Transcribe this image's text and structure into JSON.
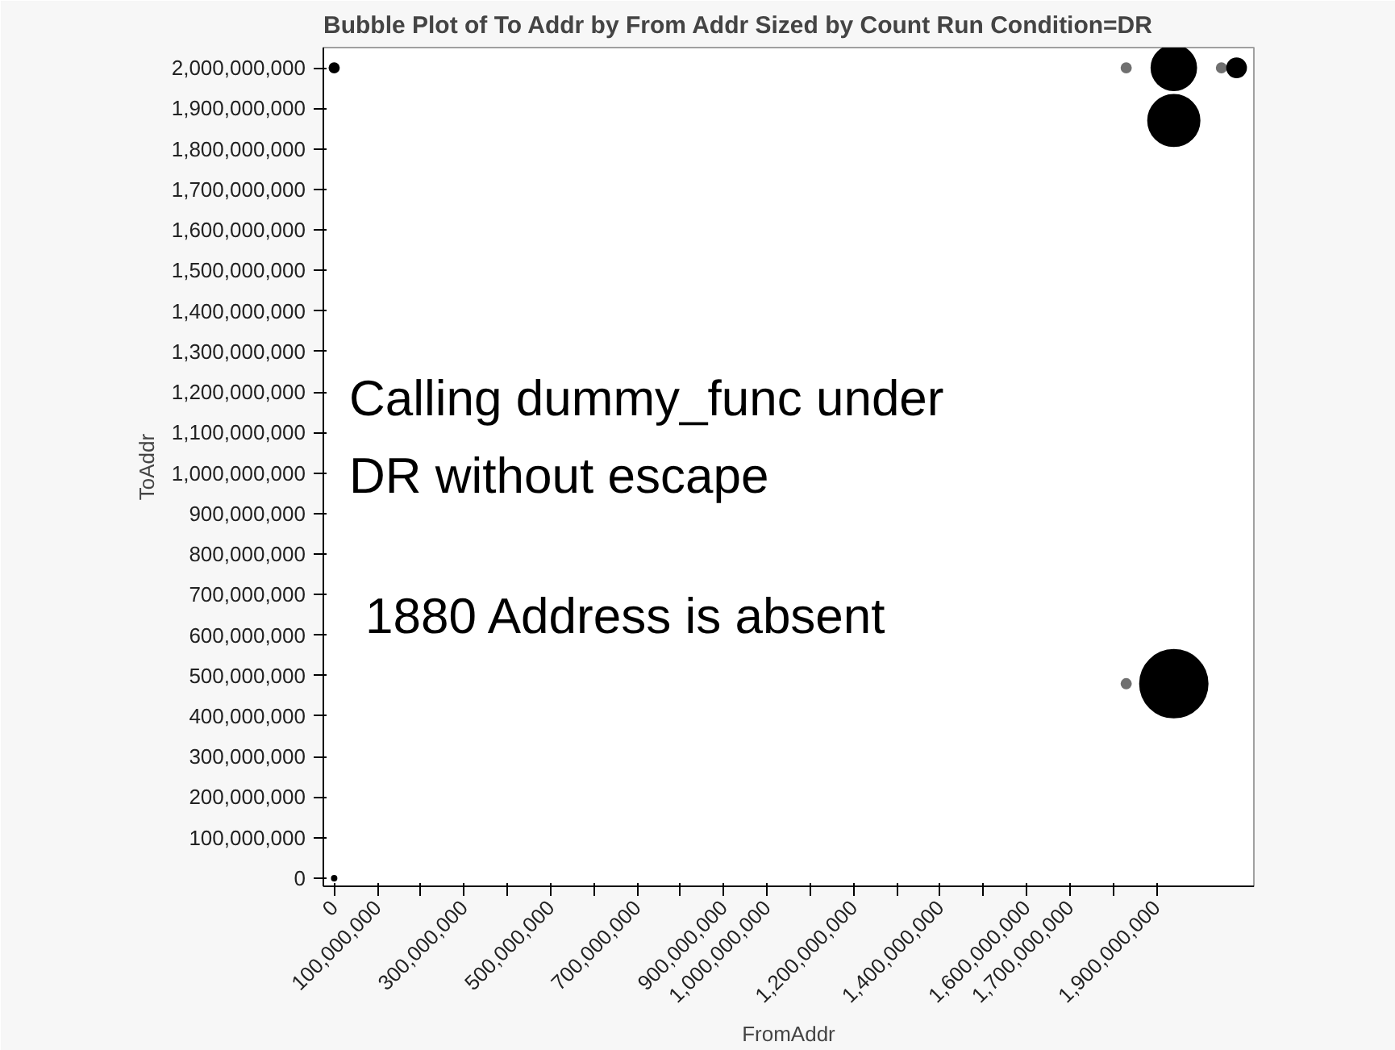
{
  "chart_data": {
    "type": "bubble",
    "title": "Bubble Plot of To Addr by From Addr Sized by Count Run Condition=DR",
    "xlabel": "FromAddr",
    "ylabel": "ToAddr",
    "x": [
      0,
      0,
      1830000000,
      1940000000,
      1940000000,
      2050000000,
      2085000000,
      1830000000,
      1940000000
    ],
    "values": [
      2000000000,
      0,
      2000000000,
      2000000000,
      1870000000,
      2000000000,
      2000000000,
      480000000,
      480000000
    ],
    "sizes": [
      0.02,
      0.005,
      0.02,
      0.44,
      0.58,
      0.02,
      0.08,
      0.02,
      1
    ],
    "colors": [
      "#000000",
      "#000000",
      "#707070",
      "#000000",
      "#000000",
      "#707070",
      "#000000",
      "#707070",
      "#000000"
    ],
    "xlim": [
      -25000000,
      2125000000
    ],
    "ylim": [
      -20000000,
      2050000000
    ],
    "xticks": [
      {
        "value": 0,
        "label": "0"
      },
      {
        "value": 100000000,
        "label": "100,000,000"
      },
      {
        "value": 200000000,
        "label": null
      },
      {
        "value": 300000000,
        "label": "300,000,000"
      },
      {
        "value": 400000000,
        "label": null
      },
      {
        "value": 500000000,
        "label": "500,000,000"
      },
      {
        "value": 600000000,
        "label": null
      },
      {
        "value": 700000000,
        "label": "700,000,000"
      },
      {
        "value": 800000000,
        "label": null
      },
      {
        "value": 900000000,
        "label": "900,000,000"
      },
      {
        "value": 1000000000,
        "label": "1,000,000,000"
      },
      {
        "value": 1100000000,
        "label": null
      },
      {
        "value": 1200000000,
        "label": "1,200,000,000"
      },
      {
        "value": 1300000000,
        "label": null
      },
      {
        "value": 1400000000,
        "label": "1,400,000,000"
      },
      {
        "value": 1500000000,
        "label": null
      },
      {
        "value": 1600000000,
        "label": "1,600,000,000"
      },
      {
        "value": 1700000000,
        "label": "1,700,000,000"
      },
      {
        "value": 1800000000,
        "label": null
      },
      {
        "value": 1900000000,
        "label": "1,900,000,000"
      }
    ],
    "yticks": [
      {
        "value": 0,
        "label": "0"
      },
      {
        "value": 100000000,
        "label": "100,000,000"
      },
      {
        "value": 200000000,
        "label": "200,000,000"
      },
      {
        "value": 300000000,
        "label": "300,000,000"
      },
      {
        "value": 400000000,
        "label": "400,000,000"
      },
      {
        "value": 500000000,
        "label": "500,000,000"
      },
      {
        "value": 600000000,
        "label": "600,000,000"
      },
      {
        "value": 700000000,
        "label": "700,000,000"
      },
      {
        "value": 800000000,
        "label": "800,000,000"
      },
      {
        "value": 900000000,
        "label": "900,000,000"
      },
      {
        "value": 1000000000,
        "label": "1,000,000,000"
      },
      {
        "value": 1100000000,
        "label": "1,100,000,000"
      },
      {
        "value": 1200000000,
        "label": "1,200,000,000"
      },
      {
        "value": 1300000000,
        "label": "1,300,000,000"
      },
      {
        "value": 1400000000,
        "label": "1,400,000,000"
      },
      {
        "value": 1500000000,
        "label": "1,500,000,000"
      },
      {
        "value": 1600000000,
        "label": "1,600,000,000"
      },
      {
        "value": 1700000000,
        "label": "1,700,000,000"
      },
      {
        "value": 1800000000,
        "label": "1,800,000,000"
      },
      {
        "value": 1900000000,
        "label": "1,900,000,000"
      },
      {
        "value": 2000000000,
        "label": "2,000,000,000"
      }
    ],
    "annotations": [
      "Calling dummy_func under DR without escape",
      "1880 Address is absent"
    ],
    "grid": false
  }
}
